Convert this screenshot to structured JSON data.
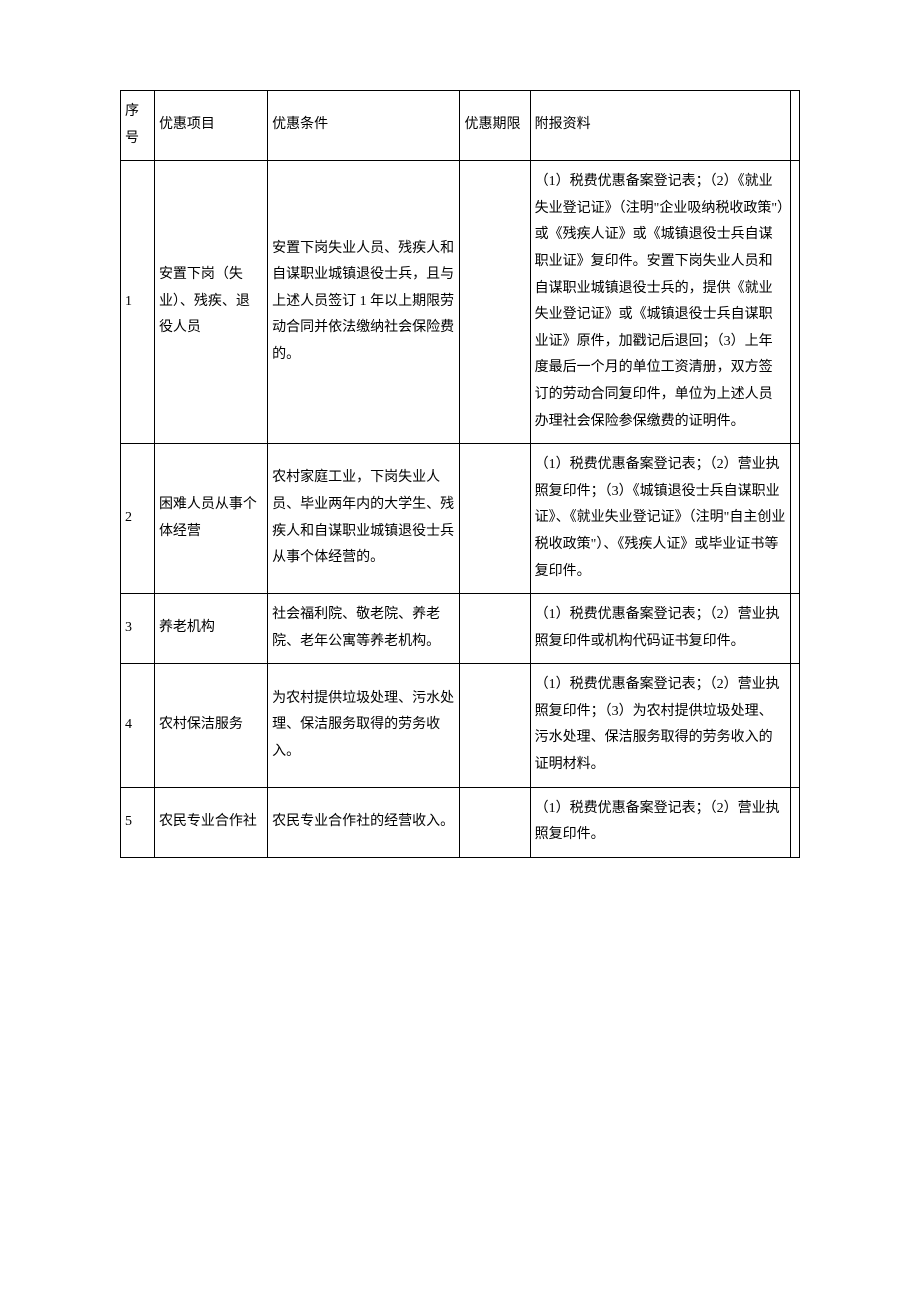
{
  "table": {
    "headers": {
      "seq": "序号",
      "project": "优惠项目",
      "condition": "优惠条件",
      "period": "优惠期限",
      "material": "附报资料"
    },
    "rows": [
      {
        "seq": "1",
        "project": "安置下岗（失业）、残疾、退役人员",
        "condition": "安置下岗失业人员、残疾人和自谋职业城镇退役士兵，且与上述人员签订 1 年以上期限劳动合同并依法缴纳社会保险费的。",
        "period": "",
        "material": "（1）税费优惠备案登记表；（2）《就业失业登记证》（注明\"企业吸纳税收政策\"）或《残疾人证》或《城镇退役士兵自谋职业证》复印件。安置下岗失业人员和自谋职业城镇退役士兵的，提供《就业失业登记证》或《城镇退役士兵自谋职业证》原件，加戳记后退回；（3）上年度最后一个月的单位工资清册，双方签订的劳动合同复印件，单位为上述人员办理社会保险参保缴费的证明件。"
      },
      {
        "seq": "2",
        "project": "困难人员从事个体经营",
        "condition": "农村家庭工业，下岗失业人员、毕业两年内的大学生、残疾人和自谋职业城镇退役士兵从事个体经营的。",
        "period": "",
        "material": "（1）税费优惠备案登记表；（2）营业执照复印件；（3）《城镇退役士兵自谋职业证》、《就业失业登记证》（注明\"自主创业税收政策\"）、《残疾人证》或毕业证书等复印件。"
      },
      {
        "seq": "3",
        "project": "养老机构",
        "condition": "社会福利院、敬老院、养老院、老年公寓等养老机构。",
        "period": "",
        "material": "（1）税费优惠备案登记表；（2）营业执照复印件或机构代码证书复印件。"
      },
      {
        "seq": "4",
        "project": "农村保洁服务",
        "condition": "为农村提供垃圾处理、污水处理、保洁服务取得的劳务收入。",
        "period": "",
        "material": "（1）税费优惠备案登记表；（2）营业执照复印件；（3）为农村提供垃圾处理、污水处理、保洁服务取得的劳务收入的证明材料。"
      },
      {
        "seq": "5",
        "project": "农民专业合作社",
        "condition": "农民专业合作社的经营收入。",
        "period": "",
        "material": "（1）税费优惠备案登记表；（2）营业执照复印件。"
      }
    ],
    "styling": {
      "border_color": "#000000",
      "background_color": "#ffffff",
      "text_color": "#000000",
      "font_family": "SimSun",
      "font_size": 14,
      "line_height": 1.9
    }
  }
}
